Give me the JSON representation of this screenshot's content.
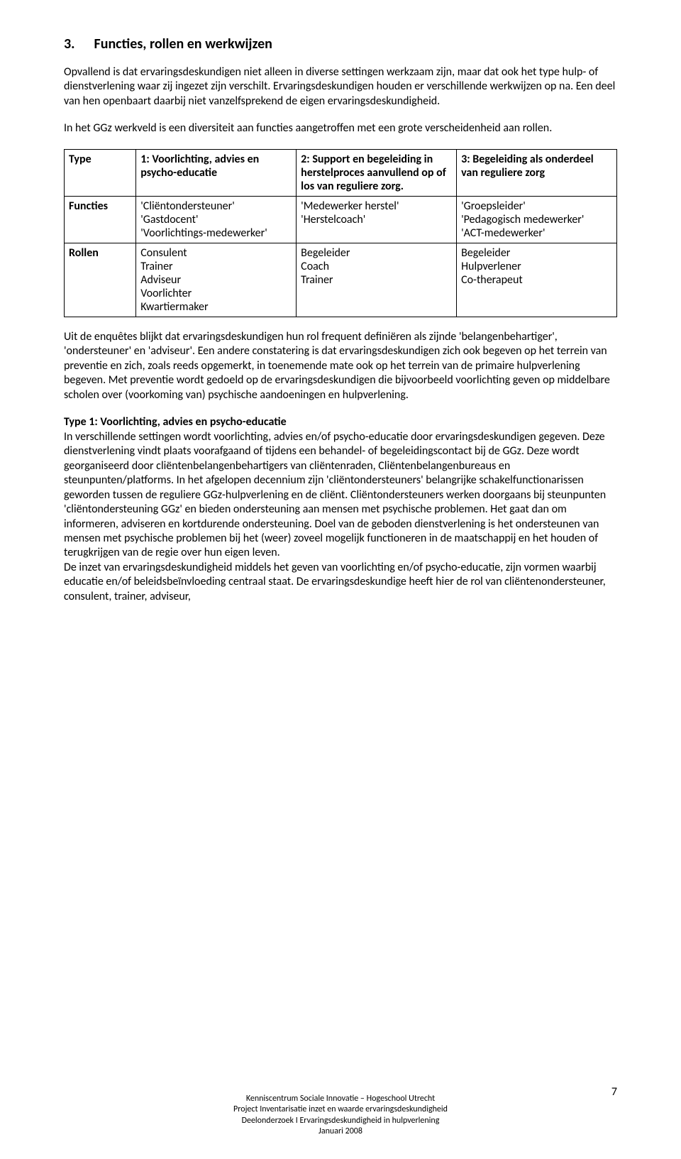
{
  "heading": {
    "number": "3.",
    "title": "Functies, rollen en werkwijzen"
  },
  "para1": "Opvallend is dat ervaringsdeskundigen niet alleen in diverse settingen werkzaam zijn, maar dat ook het type hulp- of dienstverlening waar zij ingezet zijn verschilt. Ervaringsdeskundigen houden er verschillende werkwijzen op na. Een deel van hen openbaart daarbij niet vanzelfsprekend de eigen ervaringsdeskundigheid.",
  "para2": "In het GGz werkveld is een diversiteit aan functies aangetroffen met een grote verscheidenheid aan rollen.",
  "table": {
    "cols": [
      "col0",
      "col1",
      "col2",
      "col3"
    ],
    "row0": {
      "c0": "Type",
      "c1": "1: Voorlichting, advies en psycho-educatie",
      "c2": "2: Support en begeleiding in herstelproces aanvullend op of los van reguliere zorg.",
      "c3": "3: Begeleiding als onderdeel van reguliere zorg"
    },
    "row1": {
      "c0": "Functies",
      "c1": "'Cliëntondersteuner'\n'Gastdocent'\n'Voorlichtings-medewerker'",
      "c2": "'Medewerker herstel'\n'Herstelcoach'",
      "c3": "'Groepsleider'\n'Pedagogisch medewerker'\n'ACT-medewerker'"
    },
    "row2": {
      "c0": "Rollen",
      "c1": "Consulent\nTrainer\nAdviseur\nVoorlichter\nKwartiermaker",
      "c2": "Begeleider\nCoach\nTrainer",
      "c3": "Begeleider\nHulpverlener\nCo-therapeut"
    }
  },
  "para3": "Uit de enquêtes blijkt dat ervaringsdeskundigen hun rol frequent definiëren als zijnde 'belangenbehartiger', 'ondersteuner' en 'adviseur'. Een andere constatering is dat ervaringsdeskundigen zich ook begeven op het terrein van preventie en zich, zoals reeds opgemerkt, in toenemende mate ook op het terrein van de primaire hulpverlening begeven. Met preventie wordt gedoeld op de ervaringsdeskundigen die bijvoorbeeld voorlichting geven op middelbare scholen over (voorkoming van) psychische aandoeningen en hulpverlening.",
  "subheading": "Type 1: Voorlichting, advies en psycho-educatie",
  "para4": "In verschillende settingen wordt voorlichting, advies en/of psycho-educatie door ervaringsdeskundigen gegeven. Deze dienstverlening vindt plaats voorafgaand of tijdens een behandel- of begeleidingscontact bij de GGz. Deze wordt georganiseerd door cliëntenbelangenbehartigers van cliëntenraden, Cliëntenbelangenbureaus en steunpunten/platforms. In het afgelopen decennium zijn 'cliëntondersteuners' belangrijke schakelfunctionarissen geworden tussen de reguliere GGz-hulpverlening en de cliënt. Cliëntondersteuners werken doorgaans bij steunpunten 'cliëntondersteuning GGz' en bieden ondersteuning aan mensen met psychische problemen. Het gaat dan om informeren, adviseren en kortdurende ondersteuning. Doel van de geboden dienstverlening is het ondersteunen van mensen met psychische problemen bij het (weer) zoveel mogelijk functioneren in de maatschappij en het houden of terugkrijgen van de regie over hun eigen leven.",
  "para5": "De inzet van ervaringsdeskundigheid middels het geven van voorlichting en/of psycho-educatie, zijn vormen waarbij educatie en/of beleidsbeïnvloeding centraal staat. De ervaringsdeskundige heeft hier de rol van cliëntenondersteuner, consulent, trainer, adviseur,",
  "footer": {
    "l1": "Kenniscentrum Sociale Innovatie – Hogeschool Utrecht",
    "l2": "Project Inventarisatie inzet en waarde ervaringsdeskundigheid",
    "l3": "Deelonderzoek I Ervaringsdeskundigheid in hulpverlening",
    "l4": "Januari 2008"
  },
  "page_number": "7"
}
